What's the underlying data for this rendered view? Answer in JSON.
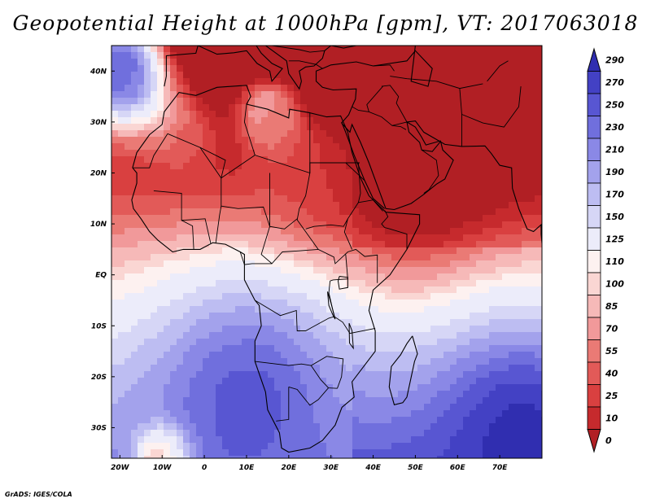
{
  "title": "Geopotential Height at 1000hPa [gpm], VT: 2017063018",
  "footer": "GrADS: IGES/COLA",
  "map": {
    "lat_range": [
      -36,
      45
    ],
    "lon_range": [
      -22,
      80
    ],
    "lat_ticks": [
      {
        "value": 40,
        "label": "40N"
      },
      {
        "value": 30,
        "label": "30N"
      },
      {
        "value": 20,
        "label": "20N"
      },
      {
        "value": 10,
        "label": "10N"
      },
      {
        "value": 0,
        "label": "EQ"
      },
      {
        "value": -10,
        "label": "10S"
      },
      {
        "value": -20,
        "label": "20S"
      },
      {
        "value": -30,
        "label": "30S"
      }
    ],
    "lon_ticks": [
      {
        "value": -20,
        "label": "20W"
      },
      {
        "value": -10,
        "label": "10W"
      },
      {
        "value": 0,
        "label": "0"
      },
      {
        "value": 10,
        "label": "10E"
      },
      {
        "value": 20,
        "label": "20E"
      },
      {
        "value": 30,
        "label": "30E"
      },
      {
        "value": 40,
        "label": "40E"
      },
      {
        "value": 50,
        "label": "50E"
      },
      {
        "value": 60,
        "label": "60E"
      },
      {
        "value": 70,
        "label": "70E"
      }
    ]
  },
  "colorbar": {
    "levels": [
      "0",
      "10",
      "25",
      "40",
      "55",
      "70",
      "85",
      "100",
      "110",
      "125",
      "150",
      "170",
      "190",
      "210",
      "230",
      "250",
      "270",
      "290"
    ],
    "colors": [
      "#b11f24",
      "#c62a2d",
      "#d94040",
      "#e25a58",
      "#ea7a75",
      "#f1999a",
      "#f6b9b8",
      "#fad6d3",
      "#fdf1f0",
      "#ececfa",
      "#d6d6f6",
      "#bdbdf2",
      "#a3a2ec",
      "#8a88e6",
      "#706fdd",
      "#5856d2",
      "#4341c4",
      "#302eb0"
    ]
  },
  "field": {
    "centers": [
      {
        "lat": 20,
        "lon": 48,
        "value": -18,
        "radius": 16
      },
      {
        "lat": 25,
        "lon": 62,
        "value": 0,
        "radius": 14
      },
      {
        "lat": 35,
        "lon": 70,
        "value": 5,
        "radius": 12
      },
      {
        "lat": 18,
        "lon": 25,
        "value": 35,
        "radius": 12
      },
      {
        "lat": 27,
        "lon": -5,
        "value": 45,
        "radius": 9
      },
      {
        "lat": 32,
        "lon": 15,
        "value": 90,
        "radius": 8
      },
      {
        "lat": -25,
        "lon": 10,
        "value": 260,
        "radius": 22
      },
      {
        "lat": -32,
        "lon": 75,
        "value": 300,
        "radius": 20
      },
      {
        "lat": 40,
        "lon": -20,
        "value": 270,
        "radius": 12
      },
      {
        "lat": -36,
        "lon": -10,
        "value": 40,
        "radius": 6
      }
    ]
  }
}
